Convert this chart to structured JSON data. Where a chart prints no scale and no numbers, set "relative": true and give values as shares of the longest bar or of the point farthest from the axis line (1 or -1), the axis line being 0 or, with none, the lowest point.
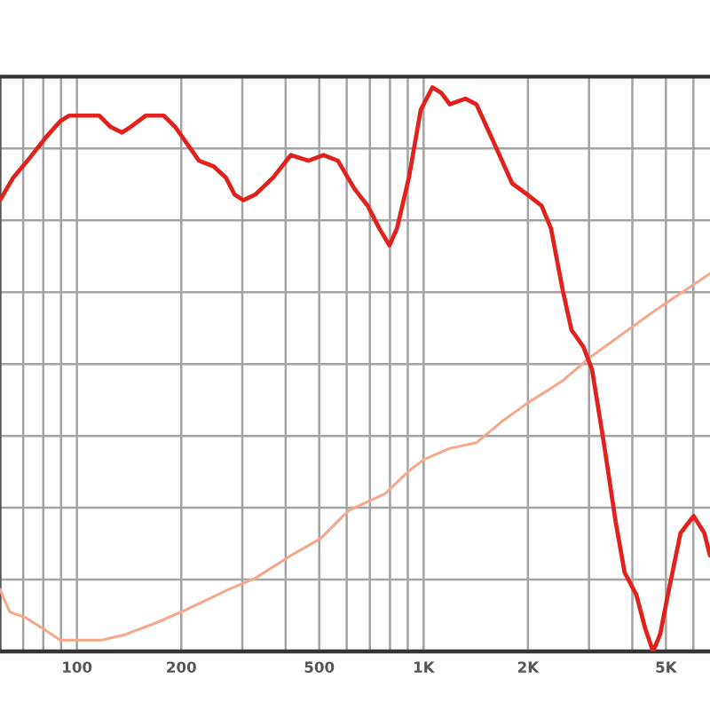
{
  "chart_data": {
    "type": "line",
    "relative": true,
    "log": "x",
    "grid": true,
    "xlim": [
      60,
      6700
    ],
    "xticks": [
      {
        "value": 60,
        "label": null
      },
      {
        "value": 70,
        "label": null
      },
      {
        "value": 80,
        "label": null
      },
      {
        "value": 90,
        "label": null
      },
      100,
      200,
      {
        "value": 300,
        "label": null
      },
      {
        "value": 400,
        "label": null
      },
      500,
      {
        "value": 600,
        "label": null
      },
      {
        "value": 700,
        "label": null
      },
      {
        "value": 800,
        "label": null
      },
      {
        "value": 900,
        "label": null
      },
      {
        "value": 1000,
        "label": "1K"
      },
      {
        "value": 2000,
        "label": "2K"
      },
      {
        "value": 3000,
        "label": null
      },
      {
        "value": 4000,
        "label": null
      },
      {
        "value": 5000,
        "label": "5K"
      },
      {
        "value": 6000,
        "label": null
      }
    ],
    "series": [
      {
        "color": "#e3211c",
        "x": [
          60,
          65.5,
          72,
          81,
          89.5,
          95,
          105,
          116,
          125,
          135,
          143,
          158,
          178,
          192,
          208,
          225,
          248,
          269,
          285,
          302,
          327,
          368,
          414,
          465,
          514,
          566,
          632,
          690,
          745,
          797,
          838,
          907,
          981,
          1060,
          1125,
          1190,
          1320,
          1420,
          1600,
          1800,
          1990,
          2190,
          2330,
          2520,
          2670,
          2890,
          3060,
          3310,
          3580,
          3800,
          4110,
          4360,
          4590,
          4810,
          5100,
          5510,
          6010,
          6450,
          6700
        ],
        "values": [
          0.8,
          0.84,
          0.87,
          0.91,
          0.94,
          0.95,
          0.95,
          0.95,
          0.93,
          0.92,
          0.93,
          0.95,
          0.95,
          0.93,
          0.9,
          0.87,
          0.86,
          0.84,
          0.81,
          0.8,
          0.81,
          0.84,
          0.88,
          0.87,
          0.88,
          0.87,
          0.82,
          0.79,
          0.75,
          0.72,
          0.75,
          0.84,
          0.96,
          1.0,
          0.99,
          0.97,
          0.98,
          0.97,
          0.9,
          0.83,
          0.81,
          0.79,
          0.75,
          0.64,
          0.57,
          0.54,
          0.5,
          0.37,
          0.23,
          0.14,
          0.1,
          0.04,
          0.0,
          0.03,
          0.11,
          0.21,
          0.24,
          0.21,
          0.17
        ]
      },
      {
        "color": "#f5a88c",
        "x": [
          60,
          64,
          71,
          80,
          89.5,
          101,
          118,
          138,
          168,
          200,
          234,
          274,
          327,
          414,
          504,
          608,
          775,
          907,
          1000,
          1190,
          1420,
          1700,
          1990,
          2520,
          3000,
          4540,
          6700
        ],
        "values": [
          0.11,
          0.07,
          0.06,
          0.04,
          0.02,
          0.02,
          0.02,
          0.03,
          0.05,
          0.07,
          0.09,
          0.11,
          0.13,
          0.17,
          0.2,
          0.25,
          0.28,
          0.32,
          0.34,
          0.36,
          0.37,
          0.41,
          0.44,
          0.48,
          0.52,
          0.6,
          0.67
        ]
      }
    ]
  }
}
